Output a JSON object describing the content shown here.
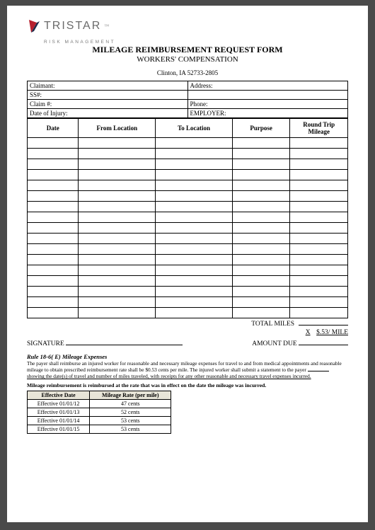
{
  "logo": {
    "word": "TRISTAR",
    "tagline": "RISK MANAGEMENT"
  },
  "header": {
    "title_main": "MILEAGE REIMBURSEMENT REQUEST FORM",
    "title_sub": "WORKERS' COMPENSATION",
    "address_line": "Clinton, IA 52733-2805"
  },
  "info": {
    "claimant_label": "Claimant:",
    "address_label": "Address:",
    "ss_label": "SS#:",
    "claim_label": "Claim #:",
    "phone_label": "Phone:",
    "doi_label": "Date of Injury:",
    "employer_label": "EMPLOYER:"
  },
  "mileage_table": {
    "headers": [
      "Date",
      "From Location",
      "To Location",
      "Purpose",
      "Round Trip Mileage"
    ],
    "blank_rows": 17
  },
  "totals": {
    "total_miles_label": "TOTAL MILES",
    "rate_prefix": "X",
    "rate_text": "$.53/ MILE",
    "signature_label": "SIGNATURE",
    "amount_due_label": "AMOUNT DUE"
  },
  "rule": {
    "title": "Rule 18-6( E) Mileage Expenses",
    "body_pre": "The payer shall reimburse an injured worker for reasonable and necessary mileage expenses for travel to and from medical appointments and reasonable mileage to obtain prescribed reimbursement rate shall be $0.53 cents per mile. The injured worker shall submit a statement to the payer ",
    "body_underlined": "showing the date(s) of travel and number of miles traveled, with receipts for any other reasonable and necessary travel expenses incurred."
  },
  "rate_note": "Mileage reimbursement is reimbursed at the rate that was in effect on the date the mileage was incurred.",
  "rate_table": {
    "headers": [
      "Effective Date",
      "Mileage Rate (per mile)"
    ],
    "rows": [
      [
        "Effective 01/01/12",
        "47 cents"
      ],
      [
        "Effective 01/01/13",
        "52 cents"
      ],
      [
        "Effective 01/01/14",
        "53 cents"
      ],
      [
        "Effective 01/01/15",
        "53 cents"
      ]
    ]
  },
  "colors": {
    "page_bg": "#ffffff",
    "outer_bg": "#4a4a4a",
    "rate_header_bg": "#e8e5d8",
    "logo_red": "#b6202e",
    "logo_navy": "#1e2a4a"
  }
}
